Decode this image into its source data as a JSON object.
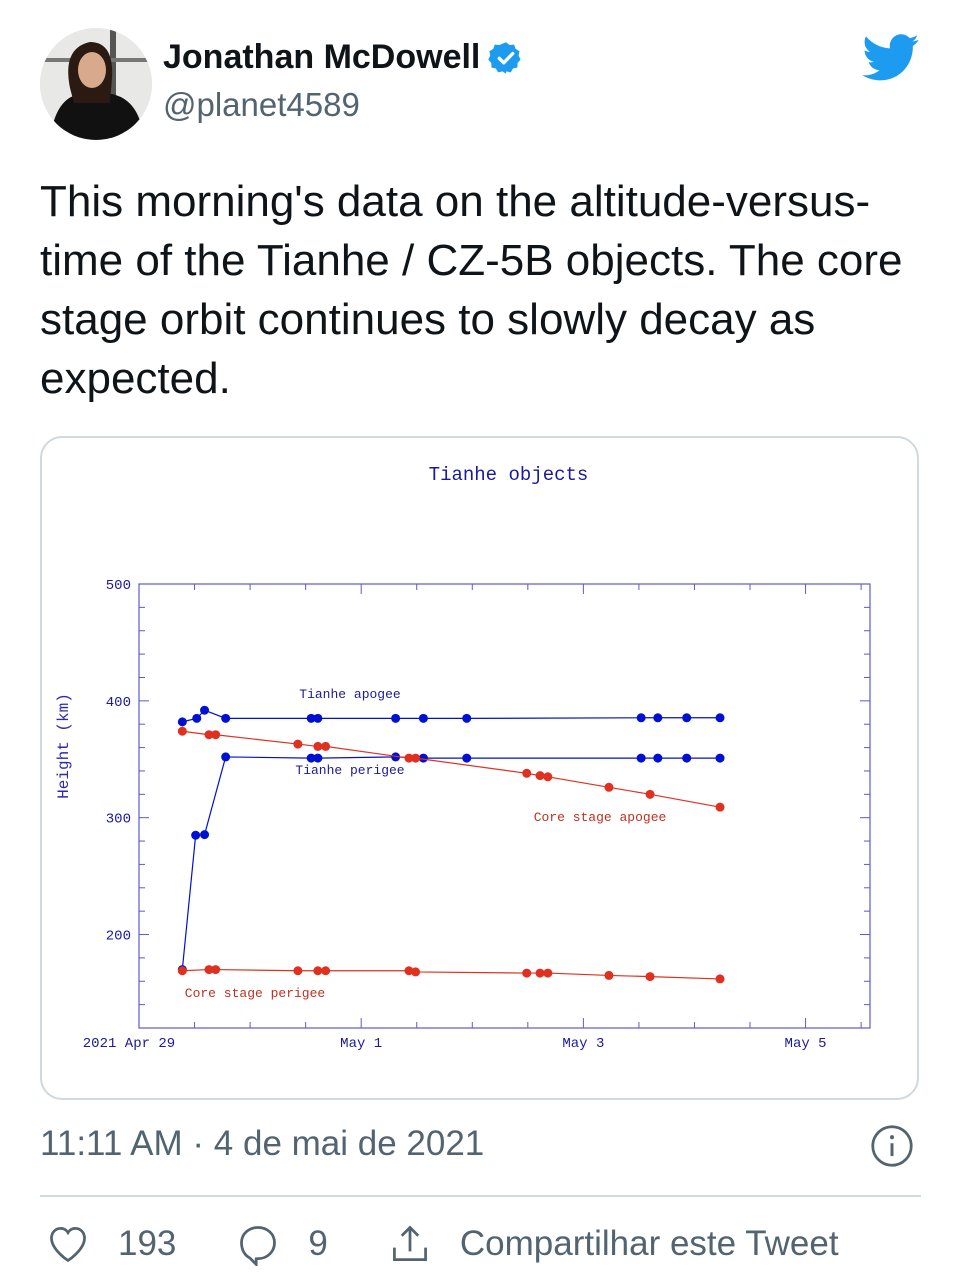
{
  "tweet": {
    "author_name": "Jonathan McDowell",
    "handle": "@planet4589",
    "text": "This morning's data on the altitude-versus-time of the Tianhe / CZ-5B objects. The core stage orbit continues to slowly decay as expected.",
    "timestamp": "11:11 AM · 4 de mai de 2021",
    "likes": "193",
    "replies": "9",
    "share_label": "Compartilhar este Tweet",
    "icons": [
      "verified-badge-icon",
      "twitter-bird-icon",
      "info-icon",
      "heart-icon",
      "reply-icon",
      "share-icon"
    ],
    "colors": {
      "verified": "#1d9bf0",
      "twitter_blue": "#1d9bf0",
      "muted": "#536471"
    }
  },
  "chart_data": {
    "type": "line",
    "title": "Tianhe objects",
    "xlabel": "",
    "ylabel": "Height (km)",
    "x_units": "days since 2021 Apr 29 00:00",
    "xlim": [
      0,
      6.58
    ],
    "ylim": [
      120,
      500
    ],
    "xticks": [
      {
        "value": 0,
        "label": "2021 Apr 29"
      },
      {
        "value": 2,
        "label": "May  1"
      },
      {
        "value": 4,
        "label": "May  3"
      },
      {
        "value": 6,
        "label": "May  5"
      }
    ],
    "yticks": [
      {
        "value": 200,
        "label": "200"
      },
      {
        "value": 300,
        "label": "300"
      },
      {
        "value": 400,
        "label": "400"
      },
      {
        "value": 500,
        "label": "500"
      }
    ],
    "grid": false,
    "series": [
      {
        "name": "Tianhe apogee",
        "color": "#0010d0",
        "x": [
          0.39,
          0.52,
          0.59,
          0.78,
          1.55,
          1.61,
          2.31,
          2.56,
          2.95,
          4.52,
          4.67,
          4.93,
          5.23
        ],
        "y": [
          382,
          385,
          392,
          385,
          385,
          385,
          385,
          385,
          385,
          385.5,
          385.5,
          385.5,
          385.5
        ]
      },
      {
        "name": "Tianhe perigee",
        "color": "#0010d0",
        "x": [
          0.39,
          0.51,
          0.59,
          0.78,
          1.55,
          1.61,
          2.31,
          2.56,
          2.95,
          4.52,
          4.67,
          4.93,
          5.23
        ],
        "y": [
          170,
          285,
          285.5,
          352,
          351,
          351,
          352,
          351,
          351,
          351,
          351,
          351,
          351
        ]
      },
      {
        "name": "Core stage apogee",
        "color": "#e03020",
        "x": [
          0.39,
          0.63,
          0.69,
          1.43,
          1.61,
          1.68,
          2.43,
          2.49,
          3.49,
          3.61,
          3.68,
          4.23,
          4.6,
          5.23
        ],
        "y": [
          374,
          371,
          371,
          363,
          361,
          361,
          351,
          351,
          338,
          336,
          335,
          326,
          320,
          309
        ]
      },
      {
        "name": "Core stage perigee",
        "color": "#e03020",
        "x": [
          0.39,
          0.63,
          0.69,
          1.43,
          1.61,
          1.68,
          2.43,
          2.49,
          3.49,
          3.61,
          3.68,
          4.23,
          4.6,
          5.23
        ],
        "y": [
          169,
          170,
          170,
          169,
          169,
          169,
          169,
          168,
          167,
          167,
          167,
          165,
          164,
          162
        ]
      }
    ]
  }
}
